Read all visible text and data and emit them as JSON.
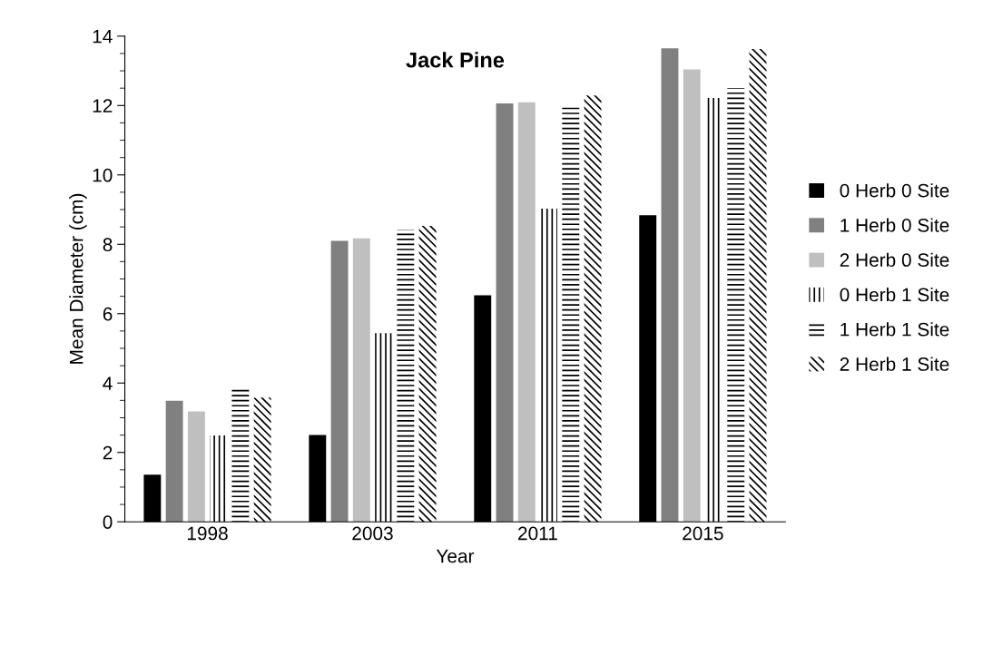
{
  "chart_data": {
    "type": "bar",
    "title": "Jack Pine",
    "xlabel": "Year",
    "ylabel": "Mean Diameter (cm)",
    "categories": [
      "1998",
      "2003",
      "2011",
      "2015"
    ],
    "series": [
      {
        "name": "0 Herb 0 Site",
        "color": "#000000",
        "values": [
          1.36,
          2.5,
          6.53,
          8.84
        ]
      },
      {
        "name": "1 Herb 0 Site",
        "color": "#808080",
        "values": [
          3.49,
          8.1,
          12.06,
          13.65
        ]
      },
      {
        "name": "2 Herb 0 Site",
        "color": "#bfbfbf",
        "values": [
          3.18,
          8.17,
          12.09,
          13.04
        ]
      },
      {
        "name": "0 Herb 1 Site",
        "color": "#000000",
        "values": [
          2.49,
          5.44,
          9.03,
          12.22
        ]
      },
      {
        "name": "1 Herb 1 Site",
        "color": "#000000",
        "values": [
          3.83,
          8.42,
          11.94,
          12.5
        ]
      },
      {
        "name": "2 Herb 1 Site",
        "color": "#000000",
        "values": [
          3.58,
          8.53,
          12.29,
          13.63
        ]
      }
    ],
    "ylim": [
      0,
      14
    ],
    "yticks": [
      0,
      2,
      4,
      6,
      8,
      10,
      12,
      14
    ],
    "grid": false,
    "legend": "right"
  }
}
